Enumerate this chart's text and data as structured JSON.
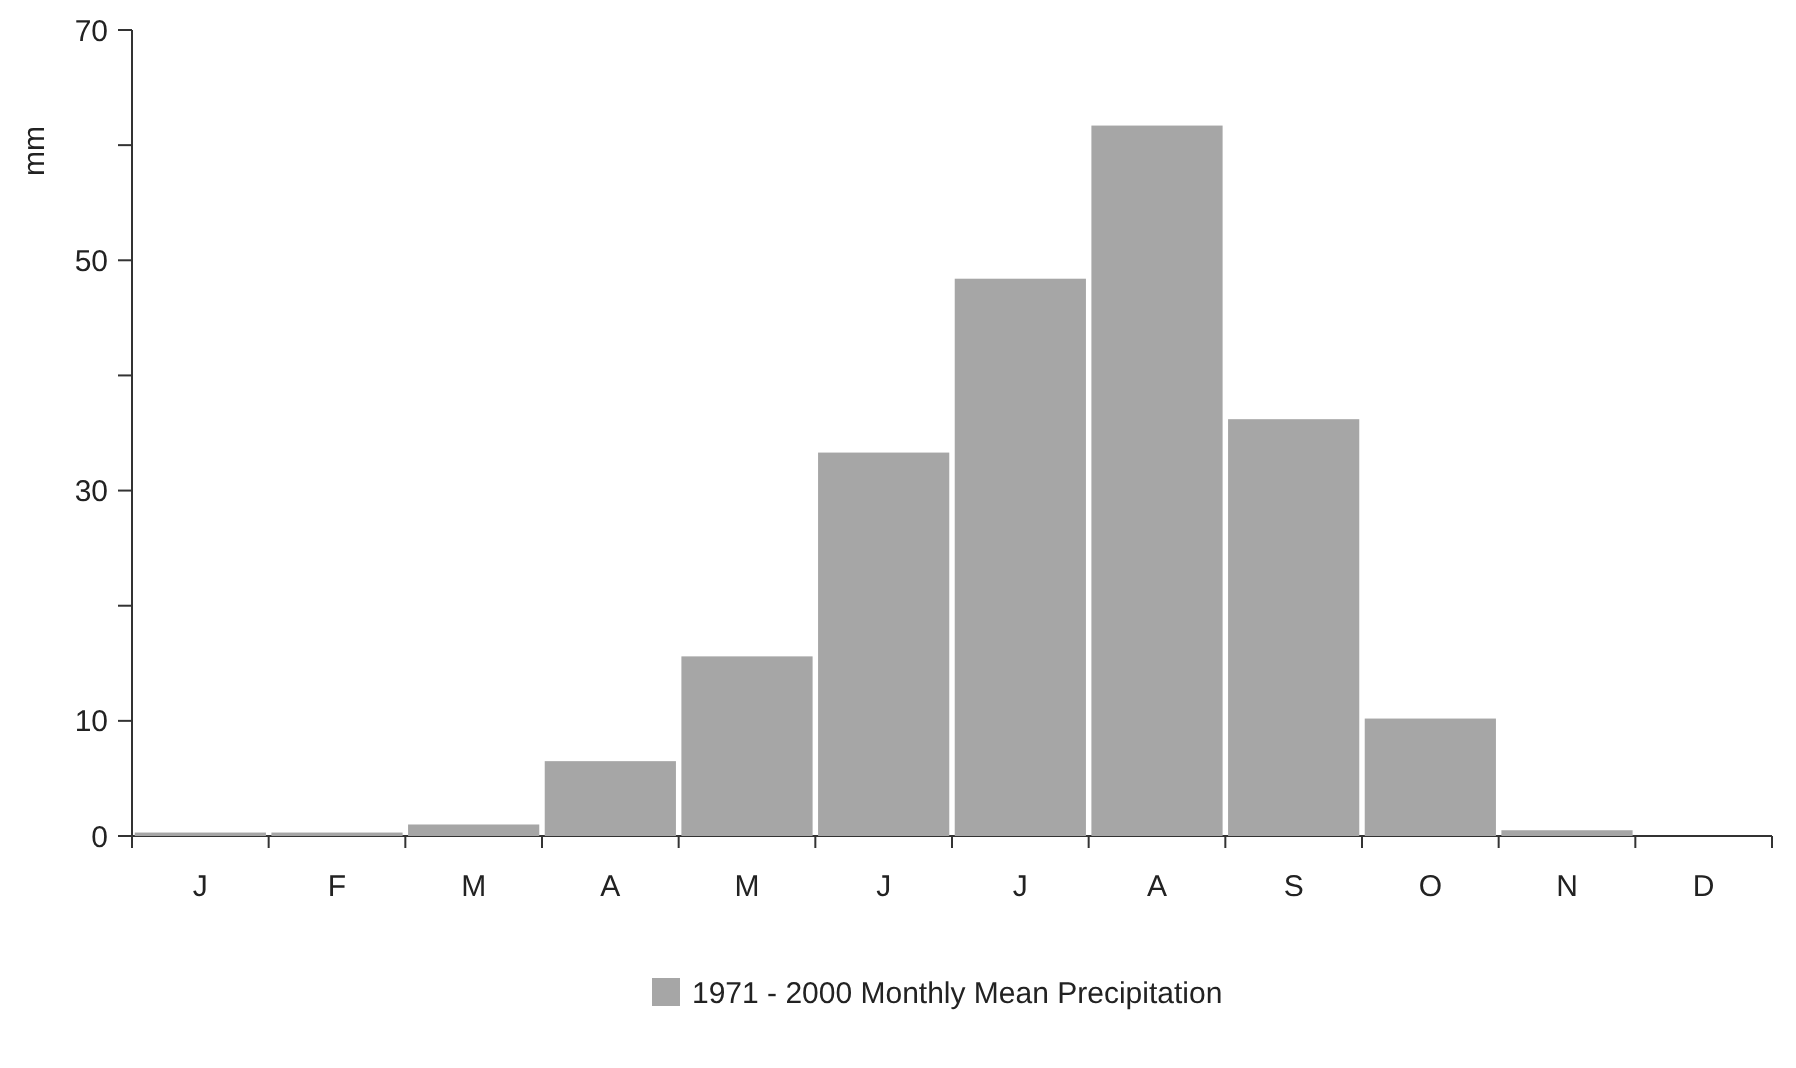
{
  "chart_data": {
    "type": "bar",
    "ylabel": "mm",
    "categories": [
      "J",
      "F",
      "M",
      "A",
      "M",
      "J",
      "J",
      "A",
      "S",
      "O",
      "N",
      "D"
    ],
    "series": [
      {
        "name": "1971 - 2000 Monthly Mean Precipitation",
        "color": "#a6a6a6",
        "values": [
          0.3,
          0.3,
          1,
          6.5,
          15.6,
          33.3,
          48.4,
          61.7,
          36.2,
          10.2,
          0.5,
          null
        ]
      }
    ],
    "ylim": [
      0,
      70
    ],
    "yticks": [
      0,
      10,
      {
        "value": 20,
        "label": null
      },
      30,
      {
        "value": 40,
        "label": null
      },
      50,
      {
        "value": 60,
        "label": null
      },
      70
    ],
    "legend": "bottom",
    "grid": false
  }
}
